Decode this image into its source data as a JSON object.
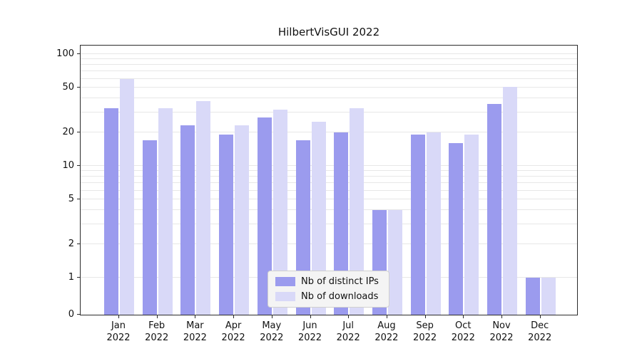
{
  "chart_data": {
    "type": "bar",
    "title": "HilbertVisGUI 2022",
    "scale": "symlog",
    "year_label": "2022",
    "categories": [
      "Jan",
      "Feb",
      "Mar",
      "Apr",
      "May",
      "Jun",
      "Jul",
      "Aug",
      "Sep",
      "Oct",
      "Nov",
      "Dec"
    ],
    "series": [
      {
        "name": "Nb of distinct IPs",
        "color": "#9b9bee",
        "values": [
          33,
          17,
          23,
          19,
          27,
          17,
          20,
          4,
          19,
          16,
          36,
          1
        ]
      },
      {
        "name": "Nb of downloads",
        "color": "#d9d9f8",
        "values": [
          60,
          33,
          38,
          23,
          32,
          25,
          33,
          4,
          20,
          19,
          51,
          1
        ]
      }
    ],
    "y_ticks": [
      0,
      1,
      2,
      5,
      10,
      20,
      50,
      100
    ],
    "gridlines": [
      1,
      2,
      3,
      4,
      5,
      6,
      7,
      8,
      9,
      10,
      20,
      30,
      40,
      50,
      60,
      70,
      80,
      90,
      100
    ],
    "ylim": [
      0,
      110
    ],
    "legend_position": "bottom-center",
    "grid": "on"
  }
}
